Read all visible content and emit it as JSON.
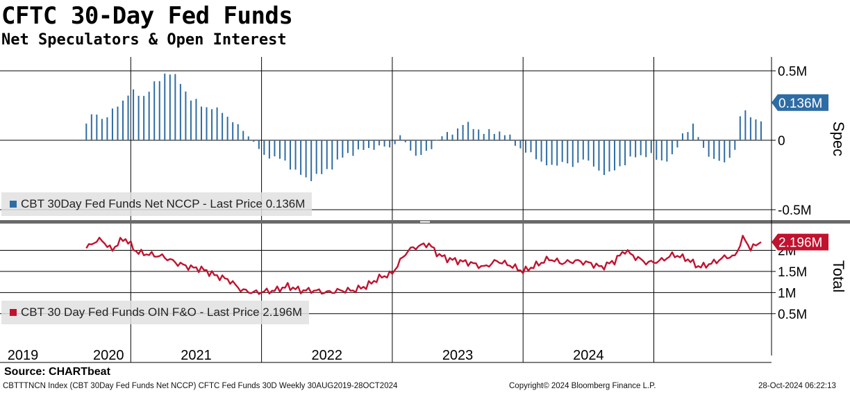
{
  "title": "CFTC 30-Day Fed Funds",
  "subtitle": "Net Speculators & Open Interest",
  "source": "Source: CHARTbeat",
  "footer": {
    "left": "CBTTTNCN Index (CBT 30Day Fed Funds Net NCCP) CFTC Fed Funds 30D  Weekly 30AUG2019-28OCT2024",
    "center": "Copyright© 2024 Bloomberg Finance L.P.",
    "right": "28-Oct-2024 06:22:13"
  },
  "colors": {
    "spec": "#2e6ca4",
    "total": "#c1122f"
  },
  "chart_data": [
    {
      "type": "bar",
      "name": "spec-panel",
      "axis_title": "Spec",
      "legend": "CBT 30Day Fed Funds Net NCCP - Last Price 0.136M",
      "last_value_label": "0.136M",
      "last_value": 0.136,
      "ylim": [
        -0.52,
        0.52
      ],
      "yticks": [
        {
          "v": 0.5,
          "label": "0.5M"
        },
        {
          "v": 0,
          "label": "0"
        },
        {
          "v": -0.5,
          "label": "-0.5M"
        }
      ],
      "x_start": 2019.66,
      "x_step_years": 0.04,
      "anchors": [
        [
          2019.66,
          0.12
        ],
        [
          2019.72,
          0.2
        ],
        [
          2019.8,
          0.15
        ],
        [
          2019.9,
          0.25
        ],
        [
          2020.0,
          0.35
        ],
        [
          2020.1,
          0.32
        ],
        [
          2020.2,
          0.42
        ],
        [
          2020.28,
          0.5
        ],
        [
          2020.38,
          0.42
        ],
        [
          2020.45,
          0.3
        ],
        [
          2020.55,
          0.25
        ],
        [
          2020.65,
          0.22
        ],
        [
          2020.72,
          0.2
        ],
        [
          2020.78,
          0.13
        ],
        [
          2020.85,
          0.08
        ],
        [
          2020.9,
          0.04
        ],
        [
          2020.95,
          -0.03
        ],
        [
          2021.0,
          -0.1
        ],
        [
          2021.08,
          -0.12
        ],
        [
          2021.18,
          -0.15
        ],
        [
          2021.25,
          -0.22
        ],
        [
          2021.35,
          -0.28
        ],
        [
          2021.45,
          -0.25
        ],
        [
          2021.55,
          -0.18
        ],
        [
          2021.65,
          -0.1
        ],
        [
          2021.75,
          -0.08
        ],
        [
          2021.85,
          -0.05
        ],
        [
          2021.92,
          -0.05
        ],
        [
          2022.0,
          -0.05
        ],
        [
          2022.05,
          0.04
        ],
        [
          2022.12,
          -0.05
        ],
        [
          2022.2,
          -0.12
        ],
        [
          2022.28,
          -0.08
        ],
        [
          2022.35,
          0.02
        ],
        [
          2022.45,
          0.05
        ],
        [
          2022.55,
          0.12
        ],
        [
          2022.62,
          0.1
        ],
        [
          2022.7,
          0.05
        ],
        [
          2022.8,
          0.07
        ],
        [
          2022.9,
          0.02
        ],
        [
          2023.0,
          -0.08
        ],
        [
          2023.1,
          -0.12
        ],
        [
          2023.2,
          -0.2
        ],
        [
          2023.3,
          -0.15
        ],
        [
          2023.38,
          -0.2
        ],
        [
          2023.45,
          -0.12
        ],
        [
          2023.55,
          -0.2
        ],
        [
          2023.65,
          -0.25
        ],
        [
          2023.75,
          -0.18
        ],
        [
          2023.85,
          -0.12
        ],
        [
          2023.95,
          -0.1
        ],
        [
          2024.05,
          -0.15
        ],
        [
          2024.15,
          -0.12
        ],
        [
          2024.22,
          0.05
        ],
        [
          2024.3,
          0.1
        ],
        [
          2024.38,
          -0.05
        ],
        [
          2024.45,
          -0.15
        ],
        [
          2024.55,
          -0.15
        ],
        [
          2024.62,
          -0.08
        ],
        [
          2024.65,
          0.15
        ],
        [
          2024.7,
          0.23
        ],
        [
          2024.75,
          0.15
        ],
        [
          2024.82,
          0.136
        ]
      ]
    },
    {
      "type": "line",
      "name": "total-panel",
      "axis_title": "Total",
      "legend": "CBT 30 Day Fed Funds OIN F&O - Last Price 2.196M",
      "last_value_label": "2.196M",
      "last_value": 2.196,
      "ylim": [
        0.2,
        2.6
      ],
      "yticks": [
        {
          "v": 2.0,
          "label": "2M"
        },
        {
          "v": 1.5,
          "label": "1.5M"
        },
        {
          "v": 1.0,
          "label": "1M"
        },
        {
          "v": 0.5,
          "label": "0.5M"
        }
      ],
      "x_start": 2019.66,
      "x_step_years": 0.02,
      "anchors": [
        [
          2019.66,
          2.05
        ],
        [
          2019.72,
          2.2
        ],
        [
          2019.78,
          2.25
        ],
        [
          2019.85,
          2.0
        ],
        [
          2019.95,
          2.3
        ],
        [
          2020.05,
          1.95
        ],
        [
          2020.15,
          1.9
        ],
        [
          2020.25,
          1.85
        ],
        [
          2020.35,
          1.7
        ],
        [
          2020.45,
          1.6
        ],
        [
          2020.55,
          1.55
        ],
        [
          2020.65,
          1.4
        ],
        [
          2020.75,
          1.3
        ],
        [
          2020.85,
          1.05
        ],
        [
          2020.95,
          1.0
        ],
        [
          2021.1,
          1.05
        ],
        [
          2021.2,
          1.15
        ],
        [
          2021.3,
          1.05
        ],
        [
          2021.4,
          1.05
        ],
        [
          2021.5,
          1.0
        ],
        [
          2021.6,
          1.05
        ],
        [
          2021.7,
          1.05
        ],
        [
          2021.8,
          1.15
        ],
        [
          2021.9,
          1.35
        ],
        [
          2022.0,
          1.45
        ],
        [
          2022.05,
          1.7
        ],
        [
          2022.12,
          2.0
        ],
        [
          2022.2,
          2.1
        ],
        [
          2022.28,
          2.15
        ],
        [
          2022.35,
          1.9
        ],
        [
          2022.42,
          1.8
        ],
        [
          2022.5,
          1.75
        ],
        [
          2022.6,
          1.7
        ],
        [
          2022.7,
          1.6
        ],
        [
          2022.8,
          1.75
        ],
        [
          2022.9,
          1.65
        ],
        [
          2023.0,
          1.5
        ],
        [
          2023.1,
          1.65
        ],
        [
          2023.2,
          1.8
        ],
        [
          2023.3,
          1.7
        ],
        [
          2023.4,
          1.75
        ],
        [
          2023.5,
          1.7
        ],
        [
          2023.6,
          1.6
        ],
        [
          2023.7,
          1.75
        ],
        [
          2023.78,
          2.0
        ],
        [
          2023.85,
          1.85
        ],
        [
          2023.95,
          1.7
        ],
        [
          2024.05,
          1.75
        ],
        [
          2024.15,
          1.9
        ],
        [
          2024.25,
          1.8
        ],
        [
          2024.35,
          1.6
        ],
        [
          2024.45,
          1.7
        ],
        [
          2024.55,
          1.85
        ],
        [
          2024.62,
          1.85
        ],
        [
          2024.68,
          2.3
        ],
        [
          2024.74,
          2.05
        ],
        [
          2024.8,
          2.15
        ],
        [
          2024.82,
          2.196
        ]
      ]
    }
  ],
  "x_axis": {
    "range": [
      2019.0,
      2024.9
    ],
    "year_dividers": [
      2019.0,
      2020.0,
      2021.0,
      2022.0,
      2023.0,
      2024.0
    ],
    "labels": [
      {
        "text": "2019",
        "center": 2019.16
      },
      {
        "text": "2020",
        "center": 2019.83
      },
      {
        "text": "2021",
        "center": 2020.5
      },
      {
        "text": "2022",
        "center": 2021.5
      },
      {
        "text": "2023",
        "center": 2022.5
      },
      {
        "text": "2024",
        "center": 2023.5
      }
    ]
  }
}
